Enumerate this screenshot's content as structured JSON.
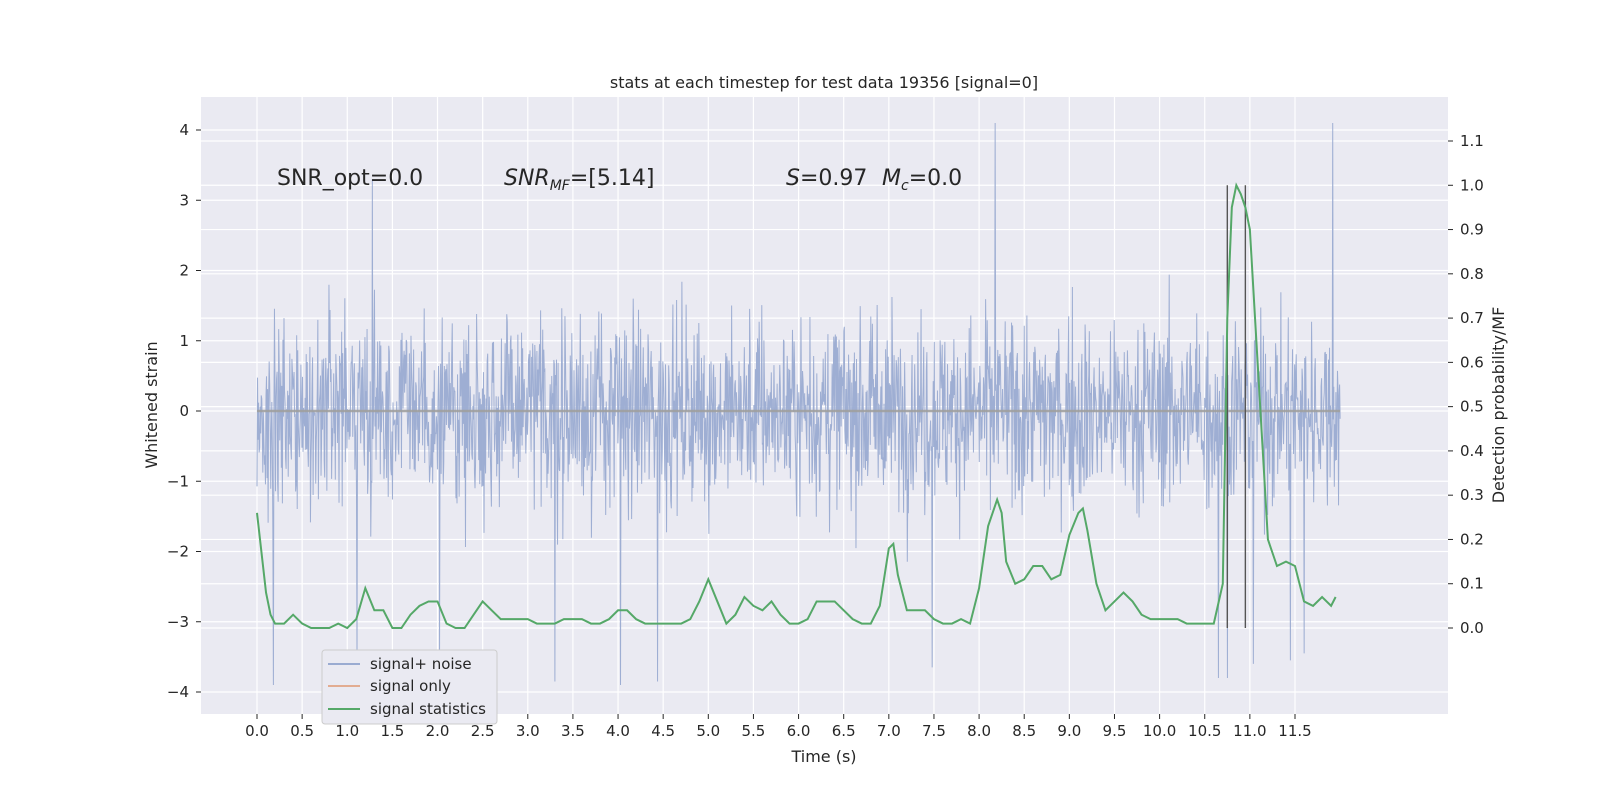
{
  "chart_data": {
    "type": "line",
    "title": "stats at each timestep for test data 19356 [signal=0]",
    "xlabel": "Time (s)",
    "ylabel": "Whitened strain",
    "y2label": "Detection probability/MF",
    "xlim": [
      -0.6,
      12.6
    ],
    "ylim": [
      -4.4,
      4.5
    ],
    "y2lim": [
      -0.25,
      1.3
    ],
    "x_ticks": [
      0.0,
      0.5,
      1.0,
      1.5,
      2.0,
      2.5,
      3.0,
      3.5,
      4.0,
      4.5,
      5.0,
      5.5,
      6.0,
      6.5,
      7.0,
      7.5,
      8.0,
      8.5,
      9.0,
      9.5,
      10.0,
      10.5,
      11.0,
      11.5
    ],
    "x_tick_labels": [
      "0.0",
      "0.5",
      "1.0",
      "1.5",
      "2.0",
      "2.5",
      "3.0",
      "3.5",
      "4.0",
      "4.5",
      "5.0",
      "5.5",
      "6.0",
      "6.5",
      "7.0",
      "7.5",
      "8.0",
      "8.5",
      "9.0",
      "9.5",
      "10.0",
      "10.5",
      "11.0",
      "11.5"
    ],
    "y_ticks": [
      4,
      3,
      2,
      1,
      0,
      -1,
      -2,
      -3,
      -4
    ],
    "y_tick_labels": [
      "4",
      "3",
      "2",
      "1",
      "0",
      "−1",
      "−2",
      "−3",
      "−4"
    ],
    "y2_ticks": [
      1.1,
      1.0,
      0.9,
      0.8,
      0.7,
      0.6,
      0.5,
      0.4,
      0.3,
      0.2,
      0.1,
      0.0
    ],
    "y2_tick_labels": [
      "1.1",
      "1.0",
      "0.9",
      "0.8",
      "0.7",
      "0.6",
      "0.5",
      "0.4",
      "0.3",
      "0.2",
      "0.1",
      "0.0"
    ],
    "grid": true,
    "legend_position": "lower-left",
    "annotations": {
      "snr_opt": "SNR_opt=0.0",
      "snr_mf_main": "SNR",
      "snr_mf_sub": "MF",
      "snr_mf_rest": "=[5.14]",
      "s_main": "S",
      "s_rest": "=0.97",
      "mc_main": "M",
      "mc_sub": "c",
      "mc_rest": "=0.0"
    },
    "vertical_lines_x": [
      10.75,
      10.95
    ],
    "series": [
      {
        "name": "signal+ noise",
        "color": "#9aabd1",
        "note_noise": true,
        "x_range": [
          0.0,
          12.0
        ],
        "samples": 2048,
        "spikes": [
          {
            "x": 1.28,
            "y": 3.3
          },
          {
            "x": 8.18,
            "y": 4.1
          },
          {
            "x": 11.92,
            "y": 4.1
          },
          {
            "x": 0.18,
            "y": -3.9
          },
          {
            "x": 4.03,
            "y": -3.9
          },
          {
            "x": 3.3,
            "y": -3.85
          },
          {
            "x": 4.44,
            "y": -3.85
          },
          {
            "x": 10.75,
            "y": -3.8
          },
          {
            "x": 10.65,
            "y": -3.8
          },
          {
            "x": 7.48,
            "y": -3.65
          },
          {
            "x": 11.04,
            "y": -3.6
          },
          {
            "x": 11.45,
            "y": -3.55
          },
          {
            "x": 2.02,
            "y": -3.45
          },
          {
            "x": 1.11,
            "y": -3.6
          },
          {
            "x": 11.6,
            "y": -3.45
          }
        ]
      },
      {
        "name": "signal only",
        "color": "#dd8452",
        "values_constant": 0.0
      },
      {
        "name": "signal statistics",
        "color": "#55a868",
        "axis": "right",
        "x": [
          0.0,
          0.1,
          0.15,
          0.2,
          0.3,
          0.4,
          0.5,
          0.6,
          0.7,
          0.8,
          0.9,
          1.0,
          1.1,
          1.2,
          1.3,
          1.4,
          1.5,
          1.6,
          1.7,
          1.8,
          1.9,
          2.0,
          2.1,
          2.2,
          2.3,
          2.4,
          2.5,
          2.6,
          2.7,
          2.8,
          2.9,
          3.0,
          3.1,
          3.2,
          3.3,
          3.4,
          3.5,
          3.6,
          3.7,
          3.8,
          3.9,
          4.0,
          4.1,
          4.2,
          4.3,
          4.4,
          4.5,
          4.6,
          4.7,
          4.8,
          4.9,
          5.0,
          5.1,
          5.2,
          5.3,
          5.4,
          5.5,
          5.6,
          5.7,
          5.8,
          5.9,
          6.0,
          6.1,
          6.2,
          6.3,
          6.4,
          6.5,
          6.6,
          6.7,
          6.8,
          6.9,
          7.0,
          7.05,
          7.1,
          7.2,
          7.3,
          7.4,
          7.5,
          7.6,
          7.7,
          7.8,
          7.9,
          8.0,
          8.1,
          8.2,
          8.25,
          8.3,
          8.4,
          8.5,
          8.6,
          8.7,
          8.8,
          8.9,
          9.0,
          9.1,
          9.15,
          9.2,
          9.3,
          9.4,
          9.5,
          9.6,
          9.7,
          9.8,
          9.9,
          10.0,
          10.1,
          10.2,
          10.3,
          10.4,
          10.5,
          10.6,
          10.7,
          10.75,
          10.8,
          10.85,
          10.9,
          10.95,
          11.0,
          11.1,
          11.2,
          11.3,
          11.4,
          11.5,
          11.6,
          11.7,
          11.8,
          11.9,
          11.95
        ],
        "values": [
          0.26,
          0.08,
          0.03,
          0.01,
          0.01,
          0.03,
          0.01,
          0.0,
          0.0,
          0.0,
          0.01,
          0.0,
          0.02,
          0.09,
          0.04,
          0.04,
          0.0,
          0.0,
          0.03,
          0.05,
          0.06,
          0.06,
          0.01,
          0.0,
          0.0,
          0.03,
          0.06,
          0.04,
          0.02,
          0.02,
          0.02,
          0.02,
          0.01,
          0.01,
          0.01,
          0.02,
          0.02,
          0.02,
          0.01,
          0.01,
          0.02,
          0.04,
          0.04,
          0.02,
          0.01,
          0.01,
          0.01,
          0.01,
          0.01,
          0.02,
          0.06,
          0.11,
          0.06,
          0.01,
          0.03,
          0.07,
          0.05,
          0.04,
          0.06,
          0.03,
          0.01,
          0.01,
          0.02,
          0.06,
          0.06,
          0.06,
          0.04,
          0.02,
          0.01,
          0.01,
          0.05,
          0.18,
          0.19,
          0.12,
          0.04,
          0.04,
          0.04,
          0.02,
          0.01,
          0.01,
          0.02,
          0.01,
          0.09,
          0.23,
          0.29,
          0.26,
          0.15,
          0.1,
          0.11,
          0.14,
          0.14,
          0.11,
          0.12,
          0.21,
          0.26,
          0.27,
          0.22,
          0.1,
          0.04,
          0.06,
          0.08,
          0.06,
          0.03,
          0.02,
          0.02,
          0.02,
          0.02,
          0.01,
          0.01,
          0.01,
          0.01,
          0.1,
          0.7,
          0.95,
          1.0,
          0.98,
          0.95,
          0.9,
          0.55,
          0.2,
          0.14,
          0.15,
          0.14,
          0.06,
          0.05,
          0.07,
          0.05,
          0.07
        ]
      }
    ]
  }
}
